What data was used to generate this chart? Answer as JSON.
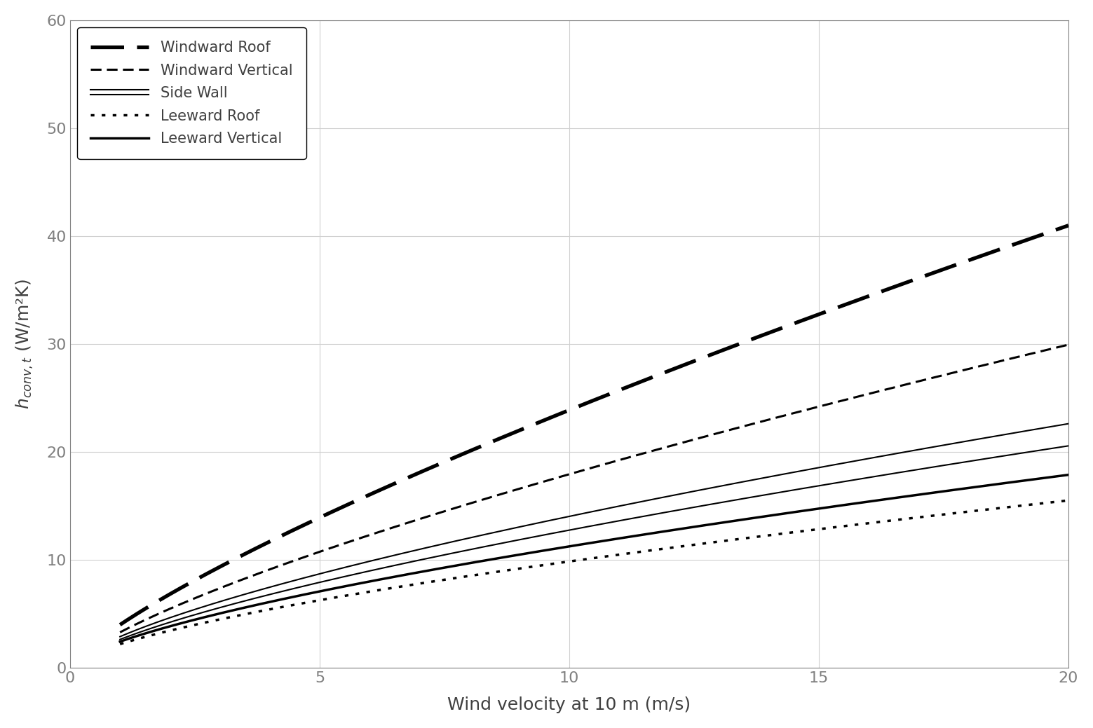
{
  "xlabel": "Wind velocity at 10 m (m/s)",
  "xlim": [
    0,
    20
  ],
  "ylim": [
    0,
    60
  ],
  "xticks": [
    0,
    5,
    10,
    15,
    20
  ],
  "yticks": [
    0,
    10,
    20,
    30,
    40,
    50,
    60
  ],
  "background_color": "#ffffff",
  "grid_color": "#d0d0d0",
  "curves": [
    {
      "name": "Windward Roof",
      "a": 0.0,
      "b": 3.96,
      "c": 0.78,
      "linestyle": "dashed_thick",
      "lw": 3.8
    },
    {
      "name": "Windward Vertical",
      "a": 0.0,
      "b": 3.26,
      "c": 0.74,
      "linestyle": "dashed_thin",
      "lw": 2.2
    },
    {
      "name": "Side Wall upper",
      "a": 0.0,
      "b": 2.86,
      "c": 0.69,
      "linestyle": "solid_thin",
      "lw": 1.5
    },
    {
      "name": "Side Wall lower",
      "a": 0.0,
      "b": 2.6,
      "c": 0.69,
      "linestyle": "solid_thin",
      "lw": 1.5
    },
    {
      "name": "Leeward Roof",
      "a": 0.0,
      "b": 2.17,
      "c": 0.656,
      "linestyle": "dotted",
      "lw": 2.5
    },
    {
      "name": "Leeward Vertical",
      "a": 0.0,
      "b": 2.4,
      "c": 0.67,
      "linestyle": "solid_thick",
      "lw": 2.5
    }
  ],
  "legend": [
    {
      "label": "Windward Roof",
      "ls": "dashed_thick",
      "lw": 3.8
    },
    {
      "label": "Windward Vertical",
      "ls": "dashed_thin",
      "lw": 2.2
    },
    {
      "label": "Side Wall",
      "ls": "solid_double",
      "lw": 1.5
    },
    {
      "label": "Leeward Roof",
      "ls": "dotted",
      "lw": 2.5
    },
    {
      "label": "Leeward Vertical",
      "ls": "solid_thick",
      "lw": 2.5
    }
  ],
  "tick_color": "#808080",
  "spine_color": "#808080",
  "label_fontsize": 18,
  "tick_fontsize": 16,
  "legend_fontsize": 15
}
